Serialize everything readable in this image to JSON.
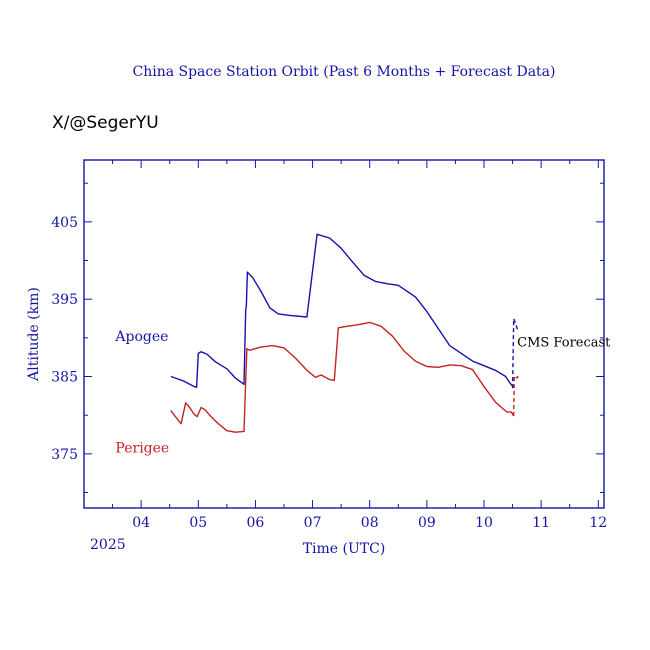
{
  "chart_data": {
    "type": "line",
    "title": "China Space Station Orbit (Past 6 Months + Forecast Data)",
    "watermark": "X/@SegerYU",
    "xlabel": "Time (UTC)",
    "ylabel": "Altitude (km)",
    "year_label": "2025",
    "xlim": [
      3.0,
      12.1
    ],
    "ylim": [
      368,
      413
    ],
    "x_ticks": [
      {
        "value": 4,
        "label": "04"
      },
      {
        "value": 5,
        "label": "05"
      },
      {
        "value": 6,
        "label": "06"
      },
      {
        "value": 7,
        "label": "07"
      },
      {
        "value": 8,
        "label": "08"
      },
      {
        "value": 9,
        "label": "09"
      },
      {
        "value": 10,
        "label": "10"
      },
      {
        "value": 11,
        "label": "11"
      },
      {
        "value": 12,
        "label": "12"
      }
    ],
    "y_ticks": [
      {
        "value": 375,
        "label": "375"
      },
      {
        "value": 385,
        "label": "385"
      },
      {
        "value": 395,
        "label": "395"
      },
      {
        "value": 405,
        "label": "405"
      }
    ],
    "grid": false,
    "colors": {
      "apogee": "#1414a8",
      "perigee": "#c42323",
      "axes": "#1414a8",
      "annotation": "#000000"
    },
    "series": [
      {
        "name": "Apogee",
        "color": "#1414a8",
        "label_text": "Apogee",
        "x": [
          4.52,
          4.6,
          4.75,
          4.9,
          4.97,
          5.0,
          5.05,
          5.15,
          5.3,
          5.5,
          5.65,
          5.8,
          5.83,
          5.84,
          5.86,
          5.95,
          6.1,
          6.25,
          6.4,
          6.6,
          6.9,
          7.08,
          7.12,
          7.3,
          7.5,
          7.7,
          7.9,
          8.1,
          8.3,
          8.5,
          8.8,
          9.0,
          9.2,
          9.4,
          9.6,
          9.8,
          10.0,
          10.2,
          10.38,
          10.45,
          10.52
        ],
        "y": [
          385.0,
          384.8,
          384.4,
          383.8,
          383.6,
          388.0,
          388.2,
          387.9,
          386.9,
          386.0,
          384.8,
          384.0,
          393.6,
          394.0,
          398.5,
          397.8,
          396.0,
          393.9,
          393.1,
          392.9,
          392.7,
          403.4,
          403.3,
          402.9,
          401.6,
          399.8,
          398.1,
          397.3,
          397.0,
          396.8,
          395.3,
          393.4,
          391.2,
          389.0,
          388.0,
          387.0,
          386.4,
          385.8,
          385.0,
          384.2,
          383.6
        ]
      },
      {
        "name": "Perigee",
        "color": "#c42323",
        "label_text": "Perigee",
        "x": [
          4.52,
          4.6,
          4.7,
          4.78,
          4.85,
          4.92,
          4.98,
          5.05,
          5.12,
          5.2,
          5.35,
          5.5,
          5.65,
          5.8,
          5.83,
          5.85,
          5.9,
          6.1,
          6.3,
          6.5,
          6.7,
          6.9,
          7.05,
          7.15,
          7.3,
          7.38,
          7.45,
          7.6,
          7.8,
          8.0,
          8.2,
          8.4,
          8.6,
          8.8,
          9.0,
          9.2,
          9.4,
          9.6,
          9.8,
          10.0,
          10.2,
          10.4,
          10.48,
          10.52
        ],
        "y": [
          380.6,
          379.8,
          378.9,
          381.6,
          381.0,
          380.2,
          379.8,
          381.0,
          380.7,
          380.0,
          378.9,
          378.0,
          377.8,
          377.9,
          384.5,
          388.6,
          388.4,
          388.8,
          389.0,
          388.7,
          387.4,
          385.8,
          384.9,
          385.2,
          384.6,
          384.5,
          391.3,
          391.5,
          391.7,
          392.0,
          391.5,
          390.2,
          388.3,
          387.0,
          386.3,
          386.2,
          386.5,
          386.4,
          385.9,
          383.7,
          381.7,
          380.4,
          380.4,
          379.9
        ]
      },
      {
        "name": "CMS Forecast (apogee)",
        "color": "#1414a8",
        "style": "dashed",
        "x": [
          10.5,
          10.52,
          10.53,
          10.6
        ],
        "y": [
          383.5,
          392.5,
          392.3,
          390.8
        ]
      },
      {
        "name": "CMS Forecast (perigee)",
        "color": "#c42323",
        "style": "dashed",
        "x": [
          10.52,
          10.53,
          10.58,
          10.6
        ],
        "y": [
          379.9,
          385.1,
          384.8,
          385.1
        ]
      }
    ],
    "annotations": [
      {
        "text": "CMS Forecast",
        "x": 10.58,
        "y": 388.9
      }
    ],
    "series_labels": [
      {
        "text": "Apogee",
        "x": 3.55,
        "y": 389.6,
        "color": "#1414a8"
      },
      {
        "text": "Perigee",
        "x": 3.55,
        "y": 375.2,
        "color": "#c42323"
      }
    ]
  }
}
